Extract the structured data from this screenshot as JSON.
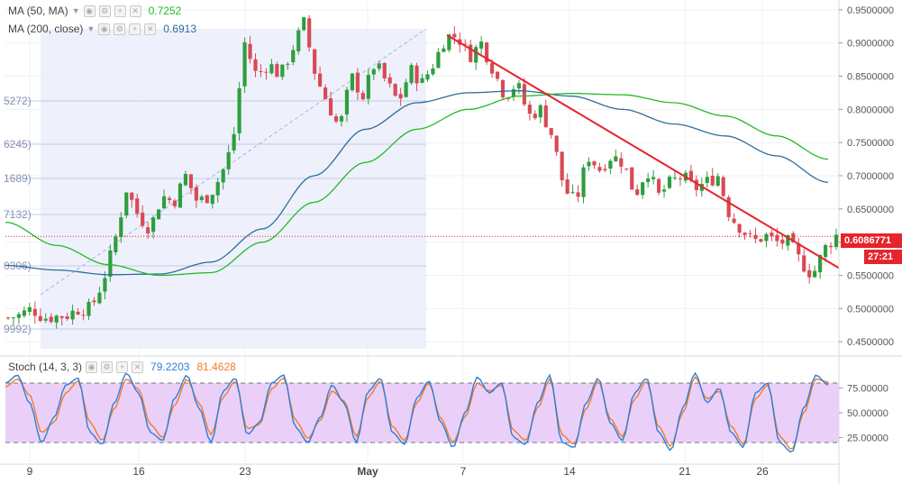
{
  "indicators": {
    "ma50": {
      "label": "MA (50, MA)",
      "value": "0.7252",
      "color": "#22bb22"
    },
    "ma200": {
      "label": "MA (200, close)",
      "value": "0.6913",
      "color": "#2e6d9e"
    },
    "stoch": {
      "label": "Stoch (14, 3, 3)",
      "k_value": "79.2203",
      "d_value": "81.4628",
      "k_color": "#2b7fd9",
      "d_color": "#f07c2a"
    }
  },
  "price_badge": {
    "value": "0.6086771",
    "color": "#e5242b"
  },
  "timer_badge": {
    "value": "27:21",
    "color": "#e5242b"
  },
  "fib_levels": [
    "5272)",
    "6245)",
    "1689)",
    "7132)",
    "0306)",
    "9992)"
  ],
  "icons": [
    "eye-icon",
    "settings-icon",
    "add-icon",
    "close-icon"
  ],
  "chart_data": {
    "type": "candlestick",
    "x_ticks": [
      "9",
      "16",
      "23",
      "May",
      "7",
      "14",
      "21",
      "26"
    ],
    "y_ticks": [
      "0.9500000",
      "0.9000000",
      "0.8500000",
      "0.8000000",
      "0.7500000",
      "0.7000000",
      "0.6500000",
      "0.6000000",
      "0.5500000",
      "0.5000000",
      "0.4500000"
    ],
    "ylim": [
      0.438,
      0.962
    ],
    "current_price": 0.6086771,
    "colors": {
      "up": "#2e9e3e",
      "down": "#d94a55"
    },
    "price_path": [
      0.486,
      0.49,
      0.5,
      0.486,
      0.488,
      0.49,
      0.5,
      0.5,
      0.54,
      0.6,
      0.68,
      0.64,
      0.62,
      0.67,
      0.66,
      0.7,
      0.66,
      0.67,
      0.7,
      0.75,
      0.9,
      0.85,
      0.87,
      0.85,
      0.89,
      0.93,
      0.85,
      0.81,
      0.77,
      0.85,
      0.82,
      0.87,
      0.84,
      0.81,
      0.86,
      0.84,
      0.87,
      0.91,
      0.91,
      0.88,
      0.9,
      0.86,
      0.82,
      0.84,
      0.79,
      0.8,
      0.76,
      0.68,
      0.66,
      0.73,
      0.71,
      0.73,
      0.72,
      0.67,
      0.71,
      0.67,
      0.69,
      0.7,
      0.68,
      0.69,
      0.7,
      0.64,
      0.62,
      0.6,
      0.61,
      0.6,
      0.6,
      0.57,
      0.55,
      0.59,
      0.61
    ],
    "ma50_path": [
      0.63,
      0.595,
      0.566,
      0.55,
      0.554,
      0.6,
      0.66,
      0.72,
      0.77,
      0.8,
      0.82,
      0.824,
      0.822,
      0.81,
      0.79,
      0.76,
      0.725
    ],
    "ma200_path": [
      0.565,
      0.558,
      0.551,
      0.552,
      0.57,
      0.62,
      0.7,
      0.77,
      0.81,
      0.825,
      0.828,
      0.82,
      0.8,
      0.778,
      0.76,
      0.73,
      0.69
    ],
    "trendline": {
      "start_price": 0.912,
      "end_price": 0.561
    },
    "stoch_ticks": [
      "75.00000",
      "50.00000",
      "25.00000"
    ],
    "stoch_ylim": [
      0,
      100
    ],
    "stoch_overbought": 80,
    "stoch_oversold": 20,
    "stoch_k": [
      80,
      88,
      60,
      20,
      45,
      78,
      85,
      30,
      18,
      60,
      90,
      70,
      30,
      22,
      65,
      88,
      55,
      20,
      72,
      85,
      28,
      40,
      80,
      88,
      35,
      20,
      45,
      78,
      60,
      20,
      72,
      85,
      30,
      18,
      65,
      82,
      40,
      15,
      50,
      86,
      70,
      80,
      25,
      18,
      60,
      88,
      20,
      15,
      60,
      85,
      40,
      22,
      70,
      85,
      30,
      12,
      55,
      90,
      60,
      75,
      30,
      15,
      70,
      80,
      20,
      10,
      55,
      88,
      78
    ],
    "stoch_d": [
      76,
      84,
      68,
      30,
      40,
      70,
      82,
      40,
      22,
      54,
      84,
      74,
      38,
      25,
      58,
      84,
      60,
      28,
      66,
      82,
      34,
      38,
      74,
      85,
      42,
      24,
      42,
      72,
      62,
      26,
      66,
      82,
      36,
      22,
      60,
      80,
      44,
      20,
      46,
      80,
      72,
      78,
      32,
      22,
      55,
      84,
      28,
      18,
      54,
      82,
      44,
      26,
      64,
      82,
      36,
      16,
      50,
      86,
      64,
      72,
      36,
      18,
      64,
      78,
      26,
      13,
      50,
      84,
      81
    ]
  }
}
